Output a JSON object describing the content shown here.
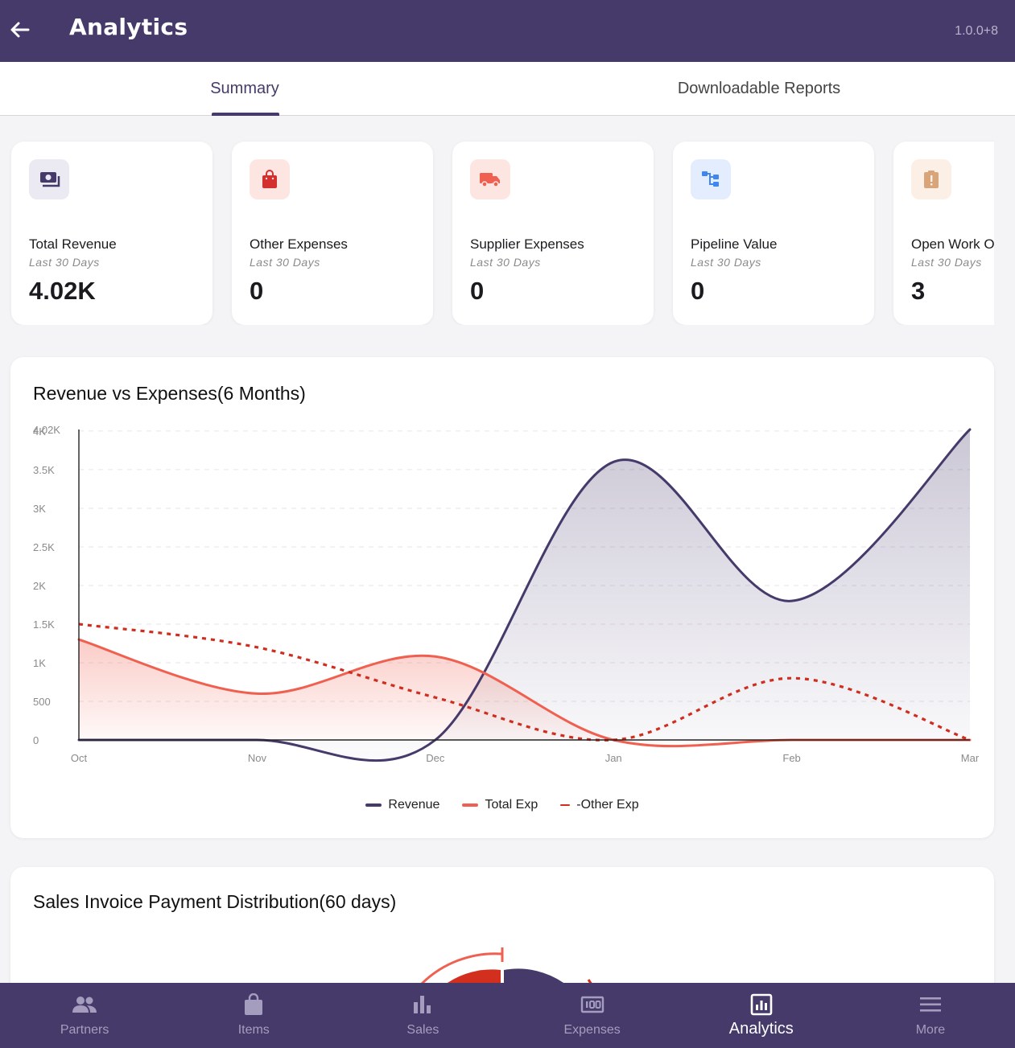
{
  "app": {
    "title": "Analytics",
    "version": "1.0.0+8"
  },
  "tabs": [
    {
      "label": "Summary",
      "active": true
    },
    {
      "label": "Downloadable Reports",
      "active": false
    }
  ],
  "kpis": [
    {
      "label": "Total Revenue",
      "sub": "Last 30 Days",
      "value": "4.02K",
      "icon": "money-icon",
      "icon_bg": "#ebe9f1",
      "icon_color": "#463a6b"
    },
    {
      "label": "Other Expenses",
      "sub": "Last 30 Days",
      "value": "0",
      "icon": "shopping-bag-icon",
      "icon_bg": "#fde5e2",
      "icon_color": "#d32f2f"
    },
    {
      "label": "Supplier Expenses",
      "sub": "Last 30 Days",
      "value": "0",
      "icon": "truck-icon",
      "icon_bg": "#fde5e2",
      "icon_color": "#f06050"
    },
    {
      "label": "Pipeline Value",
      "sub": "Last 30 Days",
      "value": "0",
      "icon": "pipeline-icon",
      "icon_bg": "#e4edfd",
      "icon_color": "#3f86f0"
    },
    {
      "label": "Open Work O",
      "sub": "Last 30 Days",
      "value": "3",
      "icon": "clipboard-alert-icon",
      "icon_bg": "#fbefe6",
      "icon_color": "#d8a57a"
    }
  ],
  "revenue_chart": {
    "title": "Revenue vs Expenses(6 Months)",
    "legend": [
      {
        "label": "Revenue",
        "color": "#463a6b"
      },
      {
        "label": "Total Exp",
        "color": "#f06050"
      },
      {
        "label": "-Other Exp",
        "color": "#cf2e1e"
      }
    ]
  },
  "chart_data": {
    "type": "line",
    "title": "Revenue vs Expenses(6 Months)",
    "categories": [
      "Oct",
      "Nov",
      "Dec",
      "Jan",
      "Feb",
      "Mar"
    ],
    "y_tick_labels": [
      "0",
      "500",
      "1K",
      "1.5K",
      "2K",
      "2.5K",
      "3K",
      "3.5K",
      "4K",
      "4.02K"
    ],
    "ylim": [
      0,
      4020
    ],
    "grid": true,
    "legend_position": "bottom",
    "series": [
      {
        "name": "Revenue",
        "values": [
          0,
          0,
          0,
          3600,
          1800,
          4020
        ],
        "color": "#463a6b",
        "style": "solid",
        "area": true
      },
      {
        "name": "Total Exp",
        "values": [
          1300,
          600,
          1080,
          0,
          0,
          0
        ],
        "color": "#f06050",
        "style": "solid",
        "area": true
      },
      {
        "name": "-Other Exp",
        "values": [
          1500,
          1200,
          550,
          0,
          800,
          0
        ],
        "color": "#cf2e1e",
        "style": "dashed",
        "area": false
      }
    ]
  },
  "distribution": {
    "title": "Sales Invoice Payment Distribution(60 days)"
  },
  "nav": [
    {
      "label": "Partners",
      "icon": "people-icon",
      "active": false
    },
    {
      "label": "Items",
      "icon": "bag-icon",
      "active": false
    },
    {
      "label": "Sales",
      "icon": "bar-chart-icon",
      "active": false
    },
    {
      "label": "Expenses",
      "icon": "cash-icon",
      "active": false
    },
    {
      "label": "Analytics",
      "icon": "analytics-icon",
      "active": true
    },
    {
      "label": "More",
      "icon": "menu-icon",
      "active": false
    }
  ]
}
